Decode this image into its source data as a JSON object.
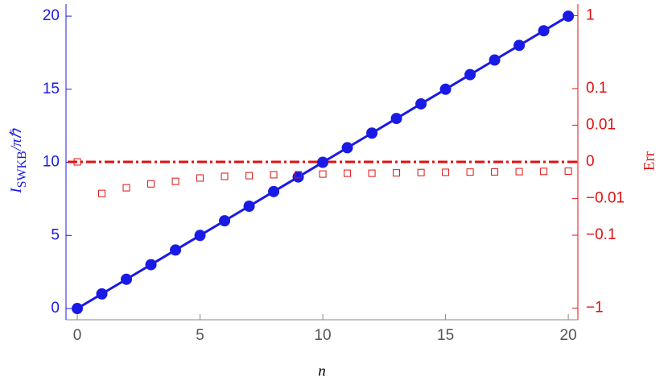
{
  "chart_data": {
    "type": "scatter",
    "xlabel": "n",
    "ylabel": {
      "main": "I",
      "sub": "SWKB",
      "rest": "/πℏ"
    },
    "y2label": "Err",
    "xlim": [
      -0.46,
      20.39
    ],
    "xticks": [
      0,
      5,
      10,
      15,
      20
    ],
    "ylim": [
      -0.77,
      20.83
    ],
    "yticks": [
      0,
      5,
      10,
      15,
      20
    ],
    "y2lim": [
      -1.29,
      1.29
    ],
    "y2scale": "signed-power",
    "y2exponent": 0.3,
    "y2ticks": [
      1,
      0.1,
      0.01,
      0,
      {
        "value": -0.01,
        "label": "−0.01"
      },
      {
        "value": -0.1,
        "label": "−0.1"
      },
      {
        "value": -1,
        "label": "−1"
      }
    ],
    "y2_reference_line": 0,
    "series": [
      {
        "color": "#1a1ae6",
        "marker": "circle",
        "line": true,
        "x": [
          0,
          1,
          2,
          3,
          4,
          5,
          6,
          7,
          8,
          9,
          10,
          11,
          12,
          13,
          14,
          15,
          16,
          17,
          18,
          19,
          20
        ],
        "values": [
          0,
          1,
          2,
          3,
          4,
          5,
          6,
          7,
          8,
          9,
          10,
          11,
          12,
          13,
          14,
          15,
          16,
          17,
          18,
          19,
          20
        ]
      },
      {
        "color": "#e01010",
        "marker": "square",
        "line": false,
        "axis": "y2",
        "x": [
          0,
          1,
          2,
          3,
          4,
          5,
          6,
          7,
          8,
          9,
          10,
          11,
          12,
          13,
          14,
          15,
          16,
          17,
          18,
          19,
          20
        ],
        "values": [
          0,
          -0.006,
          -0.0031,
          -0.0018,
          -0.0012,
          -0.00064,
          -0.00045,
          -0.00038,
          -0.0003,
          -0.0003,
          -0.00025,
          -0.0002,
          -0.0002,
          -0.00018,
          -0.00016,
          -0.00015,
          -0.00014,
          -0.00013,
          -0.00012,
          -0.00011,
          -0.0001
        ]
      }
    ]
  }
}
